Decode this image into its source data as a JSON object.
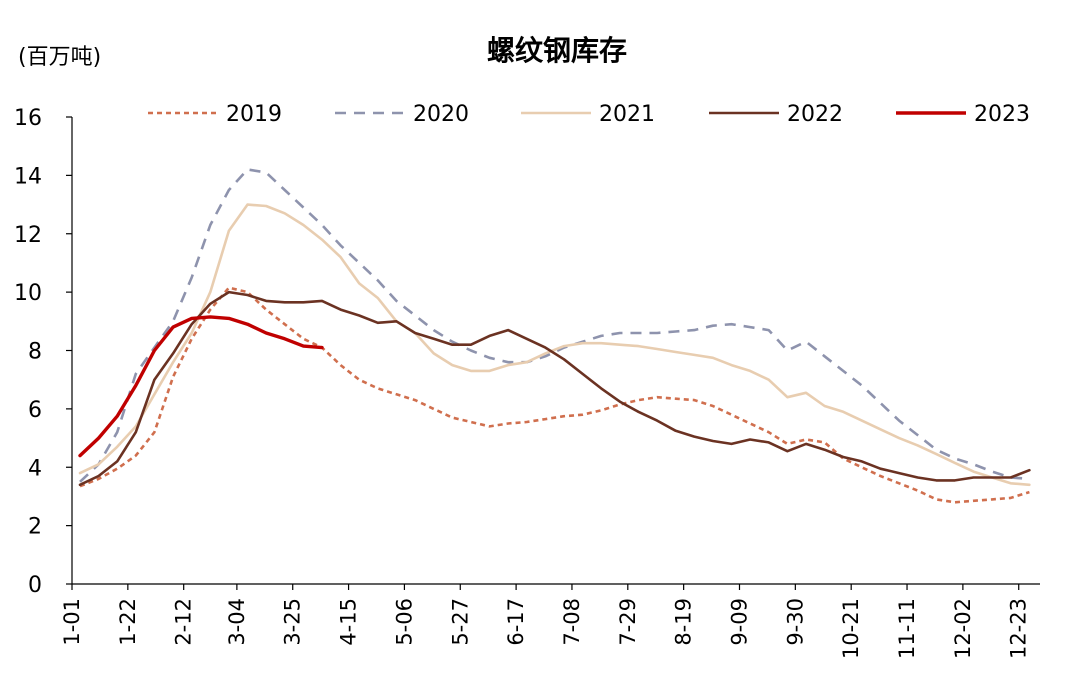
{
  "chart_data": {
    "type": "line",
    "title": "螺纹钢库存",
    "unit_label": "(百万吨)",
    "xlabel": "",
    "ylabel": "",
    "ylim": [
      0,
      16
    ],
    "y_ticks": [
      "0",
      "2",
      "4",
      "6",
      "8",
      "10",
      "12",
      "14",
      "16"
    ],
    "x_ticks": [
      "1-01",
      "1-22",
      "2-12",
      "3-04",
      "3-25",
      "4-15",
      "5-06",
      "5-27",
      "6-17",
      "7-08",
      "7-29",
      "8-19",
      "9-09",
      "9-30",
      "10-21",
      "11-11",
      "12-02",
      "12-23"
    ],
    "x_domain_days": [
      1,
      365
    ],
    "x_tick_days": [
      1,
      22,
      43,
      63,
      84,
      105,
      126,
      147,
      168,
      189,
      210,
      231,
      252,
      273,
      294,
      315,
      336,
      357
    ],
    "grid": false,
    "legend_position": "top",
    "series": [
      {
        "name": "2019",
        "color": "#d06f4e",
        "style": "dotted",
        "points": [
          [
            4,
            3.35
          ],
          [
            11,
            3.6
          ],
          [
            18,
            3.95
          ],
          [
            25,
            4.4
          ],
          [
            32,
            5.2
          ],
          [
            39,
            7.1
          ],
          [
            46,
            8.4
          ],
          [
            53,
            9.4
          ],
          [
            60,
            10.15
          ],
          [
            67,
            10.0
          ],
          [
            74,
            9.4
          ],
          [
            81,
            8.9
          ],
          [
            88,
            8.4
          ],
          [
            95,
            8.1
          ],
          [
            102,
            7.5
          ],
          [
            109,
            7.0
          ],
          [
            116,
            6.7
          ],
          [
            123,
            6.5
          ],
          [
            130,
            6.3
          ],
          [
            137,
            6.0
          ],
          [
            144,
            5.7
          ],
          [
            151,
            5.55
          ],
          [
            158,
            5.4
          ],
          [
            165,
            5.5
          ],
          [
            172,
            5.55
          ],
          [
            179,
            5.65
          ],
          [
            186,
            5.75
          ],
          [
            193,
            5.8
          ],
          [
            200,
            5.95
          ],
          [
            207,
            6.15
          ],
          [
            214,
            6.3
          ],
          [
            221,
            6.4
          ],
          [
            228,
            6.35
          ],
          [
            235,
            6.3
          ],
          [
            242,
            6.1
          ],
          [
            249,
            5.8
          ],
          [
            256,
            5.5
          ],
          [
            263,
            5.2
          ],
          [
            270,
            4.8
          ],
          [
            277,
            4.95
          ],
          [
            284,
            4.85
          ],
          [
            291,
            4.3
          ],
          [
            298,
            4.0
          ],
          [
            305,
            3.7
          ],
          [
            312,
            3.45
          ],
          [
            319,
            3.2
          ],
          [
            326,
            2.9
          ],
          [
            333,
            2.8
          ],
          [
            340,
            2.85
          ],
          [
            347,
            2.9
          ],
          [
            354,
            2.95
          ],
          [
            361,
            3.15
          ]
        ]
      },
      {
        "name": "2020",
        "color": "#8e93ad",
        "style": "dashed",
        "points": [
          [
            4,
            3.5
          ],
          [
            11,
            4.1
          ],
          [
            18,
            5.2
          ],
          [
            25,
            7.2
          ],
          [
            32,
            8.1
          ],
          [
            39,
            9.0
          ],
          [
            46,
            10.5
          ],
          [
            53,
            12.3
          ],
          [
            60,
            13.5
          ],
          [
            67,
            14.2
          ],
          [
            74,
            14.1
          ],
          [
            81,
            13.5
          ],
          [
            88,
            12.9
          ],
          [
            95,
            12.3
          ],
          [
            102,
            11.6
          ],
          [
            109,
            11.0
          ],
          [
            116,
            10.4
          ],
          [
            123,
            9.7
          ],
          [
            130,
            9.2
          ],
          [
            137,
            8.7
          ],
          [
            144,
            8.3
          ],
          [
            151,
            8.0
          ],
          [
            158,
            7.75
          ],
          [
            165,
            7.6
          ],
          [
            172,
            7.6
          ],
          [
            179,
            7.8
          ],
          [
            186,
            8.1
          ],
          [
            193,
            8.3
          ],
          [
            200,
            8.5
          ],
          [
            207,
            8.6
          ],
          [
            214,
            8.6
          ],
          [
            221,
            8.6
          ],
          [
            228,
            8.65
          ],
          [
            235,
            8.7
          ],
          [
            242,
            8.85
          ],
          [
            249,
            8.9
          ],
          [
            256,
            8.8
          ],
          [
            263,
            8.7
          ],
          [
            270,
            8.0
          ],
          [
            277,
            8.3
          ],
          [
            284,
            7.8
          ],
          [
            291,
            7.3
          ],
          [
            298,
            6.8
          ],
          [
            305,
            6.2
          ],
          [
            312,
            5.6
          ],
          [
            319,
            5.1
          ],
          [
            326,
            4.6
          ],
          [
            333,
            4.3
          ],
          [
            340,
            4.1
          ],
          [
            347,
            3.85
          ],
          [
            354,
            3.65
          ],
          [
            361,
            3.6
          ]
        ]
      },
      {
        "name": "2021",
        "color": "#e8cdb0",
        "style": "solid",
        "points": [
          [
            4,
            3.8
          ],
          [
            11,
            4.1
          ],
          [
            18,
            4.7
          ],
          [
            25,
            5.4
          ],
          [
            32,
            6.5
          ],
          [
            39,
            7.6
          ],
          [
            46,
            8.6
          ],
          [
            53,
            10.0
          ],
          [
            60,
            12.1
          ],
          [
            67,
            13.0
          ],
          [
            74,
            12.95
          ],
          [
            81,
            12.7
          ],
          [
            88,
            12.3
          ],
          [
            95,
            11.8
          ],
          [
            102,
            11.2
          ],
          [
            109,
            10.3
          ],
          [
            116,
            9.8
          ],
          [
            123,
            9.0
          ],
          [
            130,
            8.6
          ],
          [
            137,
            7.9
          ],
          [
            144,
            7.5
          ],
          [
            151,
            7.3
          ],
          [
            158,
            7.3
          ],
          [
            165,
            7.5
          ],
          [
            172,
            7.6
          ],
          [
            179,
            7.9
          ],
          [
            186,
            8.15
          ],
          [
            193,
            8.25
          ],
          [
            200,
            8.25
          ],
          [
            207,
            8.2
          ],
          [
            214,
            8.15
          ],
          [
            221,
            8.05
          ],
          [
            228,
            7.95
          ],
          [
            235,
            7.85
          ],
          [
            242,
            7.75
          ],
          [
            249,
            7.5
          ],
          [
            256,
            7.3
          ],
          [
            263,
            7.0
          ],
          [
            270,
            6.4
          ],
          [
            277,
            6.55
          ],
          [
            284,
            6.1
          ],
          [
            291,
            5.9
          ],
          [
            298,
            5.6
          ],
          [
            305,
            5.3
          ],
          [
            312,
            5.0
          ],
          [
            319,
            4.75
          ],
          [
            326,
            4.45
          ],
          [
            333,
            4.15
          ],
          [
            340,
            3.85
          ],
          [
            347,
            3.65
          ],
          [
            354,
            3.45
          ],
          [
            361,
            3.4
          ]
        ]
      },
      {
        "name": "2022",
        "color": "#6b3222",
        "style": "solid",
        "points": [
          [
            4,
            3.4
          ],
          [
            11,
            3.7
          ],
          [
            18,
            4.2
          ],
          [
            25,
            5.2
          ],
          [
            32,
            7.0
          ],
          [
            39,
            7.9
          ],
          [
            46,
            8.9
          ],
          [
            53,
            9.6
          ],
          [
            60,
            10.0
          ],
          [
            67,
            9.9
          ],
          [
            74,
            9.7
          ],
          [
            81,
            9.65
          ],
          [
            88,
            9.65
          ],
          [
            95,
            9.7
          ],
          [
            102,
            9.4
          ],
          [
            109,
            9.2
          ],
          [
            116,
            8.95
          ],
          [
            123,
            9.0
          ],
          [
            130,
            8.6
          ],
          [
            137,
            8.4
          ],
          [
            144,
            8.2
          ],
          [
            151,
            8.2
          ],
          [
            158,
            8.5
          ],
          [
            165,
            8.7
          ],
          [
            172,
            8.4
          ],
          [
            179,
            8.1
          ],
          [
            186,
            7.7
          ],
          [
            193,
            7.2
          ],
          [
            200,
            6.7
          ],
          [
            207,
            6.25
          ],
          [
            214,
            5.9
          ],
          [
            221,
            5.6
          ],
          [
            228,
            5.25
          ],
          [
            235,
            5.05
          ],
          [
            242,
            4.9
          ],
          [
            249,
            4.8
          ],
          [
            256,
            4.95
          ],
          [
            263,
            4.85
          ],
          [
            270,
            4.55
          ],
          [
            277,
            4.8
          ],
          [
            284,
            4.6
          ],
          [
            291,
            4.35
          ],
          [
            298,
            4.2
          ],
          [
            305,
            3.95
          ],
          [
            312,
            3.8
          ],
          [
            319,
            3.65
          ],
          [
            326,
            3.55
          ],
          [
            333,
            3.55
          ],
          [
            340,
            3.65
          ],
          [
            347,
            3.65
          ],
          [
            354,
            3.65
          ],
          [
            361,
            3.9
          ]
        ]
      },
      {
        "name": "2023",
        "color": "#c00000",
        "style": "solid",
        "points": [
          [
            4,
            4.4
          ],
          [
            11,
            5.0
          ],
          [
            18,
            5.75
          ],
          [
            25,
            6.8
          ],
          [
            32,
            8.0
          ],
          [
            39,
            8.8
          ],
          [
            46,
            9.1
          ],
          [
            53,
            9.15
          ],
          [
            60,
            9.1
          ],
          [
            67,
            8.9
          ],
          [
            74,
            8.6
          ],
          [
            81,
            8.4
          ],
          [
            88,
            8.15
          ],
          [
            95,
            8.1
          ]
        ]
      }
    ]
  }
}
